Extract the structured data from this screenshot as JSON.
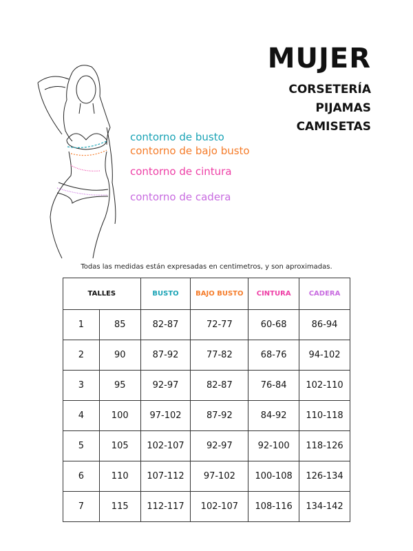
{
  "header": {
    "title": "MUJER",
    "categories": [
      "CORSETERÍA",
      "PIJAMAS",
      "CAMISETAS"
    ]
  },
  "figure": {
    "labels": [
      {
        "text": "contorno de busto",
        "color": "#1aa3b5"
      },
      {
        "text": "contorno de bajo busto",
        "color": "#f57c2a"
      },
      {
        "text": "contorno de cintura",
        "color": "#ee3fa6"
      },
      {
        "text": "contorno de cadera",
        "color": "#c86be0"
      }
    ]
  },
  "note": "Todas las medidas están expresadas en centimetros, y son aproximadas.",
  "table": {
    "headers": [
      {
        "text": "TALLES",
        "color": "#111111"
      },
      {
        "text": "BUSTO",
        "color": "#1aa3b5"
      },
      {
        "text": "BAJO BUSTO",
        "color": "#f57c2a"
      },
      {
        "text": "CINTURA",
        "color": "#ee3fa6"
      },
      {
        "text": "CADERA",
        "color": "#c86be0"
      }
    ],
    "rows": [
      [
        "1",
        "85",
        "82-87",
        "72-77",
        "60-68",
        "86-94"
      ],
      [
        "2",
        "90",
        "87-92",
        "77-82",
        "68-76",
        "94-102"
      ],
      [
        "3",
        "95",
        "92-97",
        "82-87",
        "76-84",
        "102-110"
      ],
      [
        "4",
        "100",
        "97-102",
        "87-92",
        "84-92",
        "110-118"
      ],
      [
        "5",
        "105",
        "102-107",
        "92-97",
        "92-100",
        "118-126"
      ],
      [
        "6",
        "110",
        "107-112",
        "97-102",
        "100-108",
        "126-134"
      ],
      [
        "7",
        "115",
        "112-117",
        "102-107",
        "108-116",
        "134-142"
      ]
    ]
  }
}
